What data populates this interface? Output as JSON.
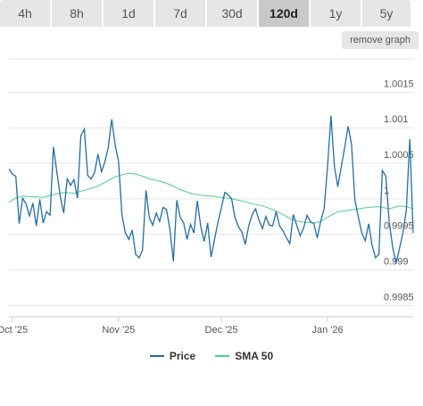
{
  "tabs": [
    {
      "label": "4h"
    },
    {
      "label": "8h"
    },
    {
      "label": "1d"
    },
    {
      "label": "7d"
    },
    {
      "label": "30d"
    },
    {
      "label": "120d",
      "active": true
    },
    {
      "label": "1y"
    },
    {
      "label": "5y"
    }
  ],
  "remove_graph_label": "remove graph",
  "colors": {
    "price": "#1f6fa8",
    "sma": "#4cd28a",
    "grid": "#e6e6e6",
    "tick": "#555555"
  },
  "chart_data": {
    "type": "line",
    "x_tick_labels": [
      "Oct '25",
      "Nov '25",
      "Dec '25",
      "Jan '26"
    ],
    "x_tick_days": [
      0,
      31,
      61,
      92
    ],
    "x_range_days": [
      -1,
      117
    ],
    "yticks": [
      0.9985,
      0.999,
      0.9995,
      1,
      1.0005,
      1.001,
      1.0015
    ],
    "ytick_labels": [
      "0.9985",
      "0.999",
      "0.9995",
      "1",
      "1.0005",
      "1.001",
      "1.0015"
    ],
    "ylim": [
      0.99834,
      1.00197
    ],
    "grid": true,
    "legend_position": "bottom",
    "series": [
      {
        "name": "Price",
        "color": "#1f6fa8",
        "values": [
          [
            -1,
            1.00042
          ],
          [
            0,
            1.00035
          ],
          [
            1,
            1.00032
          ],
          [
            2,
            0.99965
          ],
          [
            3,
            1.00001
          ],
          [
            4,
            0.99993
          ],
          [
            5,
            0.99976
          ],
          [
            6,
            0.99994
          ],
          [
            7,
            0.99962
          ],
          [
            8,
            0.99999
          ],
          [
            9,
            0.99966
          ],
          [
            10,
            0.99982
          ],
          [
            11,
            0.99977
          ],
          [
            12,
            1.00073
          ],
          [
            13,
            1.00038
          ],
          [
            14,
            1.00003
          ],
          [
            15,
            0.9998
          ],
          [
            16,
            1.00028
          ],
          [
            17,
            1.00019
          ],
          [
            18,
            1.00027
          ],
          [
            19,
            1.00001
          ],
          [
            20,
            1.00089
          ],
          [
            21,
            1.00098
          ],
          [
            22,
            1.00033
          ],
          [
            23,
            1.00028
          ],
          [
            24,
            1.00037
          ],
          [
            25,
            1.00063
          ],
          [
            26,
            1.00038
          ],
          [
            27,
            1.00052
          ],
          [
            28,
            1.00072
          ],
          [
            29,
            1.00112
          ],
          [
            30,
            1.00076
          ],
          [
            31,
            1.00053
          ],
          [
            32,
            0.99977
          ],
          [
            33,
            0.99952
          ],
          [
            34,
            0.99943
          ],
          [
            35,
            0.99956
          ],
          [
            36,
            0.99922
          ],
          [
            37,
            0.99917
          ],
          [
            38,
            0.99928
          ],
          [
            39,
            1.00012
          ],
          [
            40,
            0.99973
          ],
          [
            41,
            0.99963
          ],
          [
            42,
            0.9998
          ],
          [
            43,
            0.99968
          ],
          [
            44,
            0.99988
          ],
          [
            45,
            0.99985
          ],
          [
            46,
            0.99957
          ],
          [
            47,
            0.99912
          ],
          [
            48,
            0.99998
          ],
          [
            49,
            0.99974
          ],
          [
            50,
            0.99966
          ],
          [
            51,
            0.99943
          ],
          [
            52,
            0.99964
          ],
          [
            53,
            0.99952
          ],
          [
            54,
            0.99997
          ],
          [
            55,
            0.99961
          ],
          [
            56,
            0.9994
          ],
          [
            57,
            0.99966
          ],
          [
            58,
            0.99918
          ],
          [
            59,
            0.99942
          ],
          [
            60,
            0.99967
          ],
          [
            61,
            0.99987
          ],
          [
            62,
            1.00009
          ],
          [
            63,
            1.00006
          ],
          [
            64,
            1.0
          ],
          [
            65,
            0.99973
          ],
          [
            66,
            0.99961
          ],
          [
            67,
            0.99953
          ],
          [
            68,
            0.99936
          ],
          [
            69,
            0.99962
          ],
          [
            70,
            0.99978
          ],
          [
            71,
            0.99986
          ],
          [
            72,
            0.9997
          ],
          [
            73,
            0.99958
          ],
          [
            74,
            0.99975
          ],
          [
            75,
            0.99963
          ],
          [
            76,
            0.99962
          ],
          [
            77,
            0.99982
          ],
          [
            78,
            0.99962
          ],
          [
            79,
            0.99955
          ],
          [
            80,
            0.99945
          ],
          [
            81,
            0.99937
          ],
          [
            82,
            0.99978
          ],
          [
            83,
            0.99963
          ],
          [
            84,
            0.99948
          ],
          [
            85,
            0.99959
          ],
          [
            86,
            0.99977
          ],
          [
            87,
            0.99968
          ],
          [
            88,
            0.99965
          ],
          [
            89,
            0.99945
          ],
          [
            90,
            0.99968
          ],
          [
            91,
            0.99986
          ],
          [
            92,
            1.00045
          ],
          [
            93,
            1.00117
          ],
          [
            94,
            1.00046
          ],
          [
            95,
            1.00017
          ],
          [
            96,
            1.00045
          ],
          [
            97,
            1.00072
          ],
          [
            98,
            1.00102
          ],
          [
            99,
            1.00077
          ],
          [
            100,
            0.99998
          ],
          [
            101,
            0.99974
          ],
          [
            102,
            0.99952
          ],
          [
            103,
            0.99941
          ],
          [
            104,
            0.99965
          ],
          [
            105,
            0.99935
          ],
          [
            106,
            0.99917
          ],
          [
            107,
            0.99922
          ],
          [
            108,
            1.0004
          ],
          [
            109,
            1.00032
          ],
          [
            110,
            0.99968
          ],
          [
            111,
            0.99932
          ],
          [
            112,
            0.99909
          ],
          [
            113,
            0.9993
          ],
          [
            114,
            0.99952
          ],
          [
            115,
            0.99984
          ],
          [
            116,
            1.00084
          ],
          [
            117,
            0.99952
          ]
        ]
      },
      {
        "name": "SMA 50",
        "color": "#4cd28a",
        "values": [
          [
            -1,
            0.99995
          ],
          [
            1,
            1.00001
          ],
          [
            3,
            1.00004
          ],
          [
            6,
            1.00003
          ],
          [
            9,
            1.00002
          ],
          [
            12,
            1.00006
          ],
          [
            15,
            1.00009
          ],
          [
            18,
            1.00008
          ],
          [
            21,
            1.00012
          ],
          [
            24,
            1.00016
          ],
          [
            27,
            1.00023
          ],
          [
            30,
            1.00031
          ],
          [
            32,
            1.00034
          ],
          [
            34,
            1.00036
          ],
          [
            36,
            1.00035
          ],
          [
            38,
            1.00032
          ],
          [
            40,
            1.00028
          ],
          [
            43,
            1.00025
          ],
          [
            46,
            1.0002
          ],
          [
            49,
            1.00013
          ],
          [
            52,
            1.00008
          ],
          [
            55,
            1.00005
          ],
          [
            58,
            1.00004
          ],
          [
            61,
            1.00002
          ],
          [
            64,
            1.0
          ],
          [
            67,
            0.99997
          ],
          [
            70,
            0.99993
          ],
          [
            73,
            0.9999
          ],
          [
            76,
            0.99985
          ],
          [
            79,
            0.99978
          ],
          [
            82,
            0.9997
          ],
          [
            85,
            0.99967
          ],
          [
            88,
            0.99966
          ],
          [
            90,
            0.99968
          ],
          [
            92,
            0.99974
          ],
          [
            95,
            0.99982
          ],
          [
            98,
            0.99984
          ],
          [
            101,
            0.99986
          ],
          [
            104,
            0.99988
          ],
          [
            107,
            0.99989
          ],
          [
            110,
            0.99986
          ],
          [
            113,
            0.9999
          ],
          [
            115,
            0.99989
          ],
          [
            117,
            0.99986
          ]
        ]
      }
    ]
  }
}
